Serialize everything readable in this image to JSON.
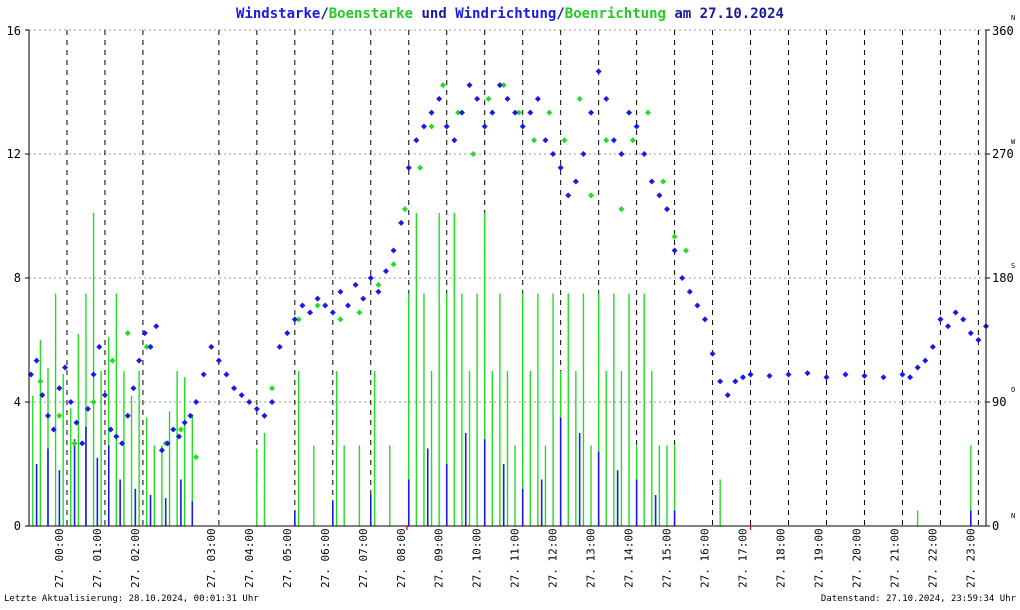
{
  "title": {
    "part1": "Windstarke",
    "sep1": "/",
    "part2": "Boenstarke",
    "part3": " und ",
    "part4": "Windrichtung",
    "sep2": "/",
    "part5": "Boenrichtung",
    "part6": " am 27.10.2024"
  },
  "footer": {
    "left": "Letzte Aktualisierung: 28.10.2024, 00:01:31 Uhr",
    "right": "Datenstand: 27.10.2024, 23:59:34 Uhr"
  },
  "colors": {
    "wind": "#1a1ae6",
    "gust": "#22dd22",
    "title_dark": "#1a1a99",
    "grid": "#000000",
    "red_marker": "#dd2222"
  },
  "chart_data": {
    "type": "scatter",
    "x_unit": "hour of day",
    "xlim": [
      0,
      24
    ],
    "left_axis": {
      "ylim": [
        0,
        16
      ],
      "ticks": [
        "0",
        "4",
        "8",
        "12",
        "16"
      ]
    },
    "right_axis": {
      "ylim": [
        0,
        360
      ],
      "ticks": [
        "0",
        "90",
        "180",
        "270",
        "360"
      ],
      "compass": [
        "N",
        "O",
        "S",
        "W",
        "N"
      ]
    },
    "x_ticks": [
      {
        "h": 0,
        "label": "27. 00:00"
      },
      {
        "h": 1,
        "label": "27. 01:00"
      },
      {
        "h": 2,
        "label": "27. 02:00"
      },
      {
        "h": 4,
        "label": "27. 03:00"
      },
      {
        "h": 5,
        "label": "27. 04:00"
      },
      {
        "h": 6,
        "label": "27. 05:00"
      },
      {
        "h": 7,
        "label": "27. 06:00"
      },
      {
        "h": 8,
        "label": "27. 07:00"
      },
      {
        "h": 9,
        "label": "27. 08:00"
      },
      {
        "h": 10,
        "label": "27. 09:00"
      },
      {
        "h": 11,
        "label": "27. 10:00"
      },
      {
        "h": 12,
        "label": "27. 11:00"
      },
      {
        "h": 13,
        "label": "27. 12:00"
      },
      {
        "h": 14,
        "label": "27. 13:00"
      },
      {
        "h": 15,
        "label": "27. 14:00"
      },
      {
        "h": 16,
        "label": "27. 15:00"
      },
      {
        "h": 17,
        "label": "27. 16:00"
      },
      {
        "h": 18,
        "label": "27. 17:00"
      },
      {
        "h": 19,
        "label": "27. 18:00"
      },
      {
        "h": 20,
        "label": "27. 19:00"
      },
      {
        "h": 21,
        "label": "27. 20:00"
      },
      {
        "h": 22,
        "label": "27. 21:00"
      },
      {
        "h": 23,
        "label": "27. 22:00"
      },
      {
        "h": 24,
        "label": "27. 23:00"
      }
    ],
    "red_markers_h": [
      9.95,
      19.0
    ],
    "series": [
      {
        "name": "Boenstarke",
        "kind": "gust_bars",
        "color": "#22dd22",
        "unit": "left",
        "values": [
          [
            0.1,
            4.2
          ],
          [
            0.3,
            6.0
          ],
          [
            0.5,
            5.1
          ],
          [
            0.7,
            7.5
          ],
          [
            0.9,
            4.9
          ],
          [
            1.1,
            3.8
          ],
          [
            1.3,
            6.2
          ],
          [
            1.5,
            7.5
          ],
          [
            1.7,
            10.1
          ],
          [
            1.9,
            5.0
          ],
          [
            2.1,
            6.1
          ],
          [
            2.3,
            7.5
          ],
          [
            2.5,
            5.0
          ],
          [
            2.7,
            4.2
          ],
          [
            2.9,
            5.0
          ],
          [
            3.1,
            3.5
          ],
          [
            3.3,
            2.6
          ],
          [
            3.5,
            2.6
          ],
          [
            3.7,
            3.7
          ],
          [
            3.9,
            5.0
          ],
          [
            4.1,
            4.8
          ],
          [
            4.3,
            3.6
          ],
          [
            6.0,
            2.5
          ],
          [
            6.2,
            3.0
          ],
          [
            7.1,
            5.0
          ],
          [
            7.5,
            2.6
          ],
          [
            8.1,
            5.0
          ],
          [
            8.3,
            2.6
          ],
          [
            8.7,
            2.6
          ],
          [
            9.1,
            5.0
          ],
          [
            9.5,
            2.6
          ],
          [
            10.0,
            7.5
          ],
          [
            10.2,
            10.1
          ],
          [
            10.4,
            7.5
          ],
          [
            10.6,
            5.0
          ],
          [
            10.8,
            10.1
          ],
          [
            11.0,
            7.5
          ],
          [
            11.2,
            10.1
          ],
          [
            11.4,
            7.5
          ],
          [
            11.6,
            5.0
          ],
          [
            11.8,
            7.5
          ],
          [
            12.0,
            10.1
          ],
          [
            12.2,
            5.0
          ],
          [
            12.4,
            7.5
          ],
          [
            12.6,
            5.0
          ],
          [
            12.8,
            2.6
          ],
          [
            13.0,
            7.5
          ],
          [
            13.2,
            5.0
          ],
          [
            13.4,
            7.5
          ],
          [
            13.6,
            2.6
          ],
          [
            13.8,
            7.5
          ],
          [
            14.0,
            5.0
          ],
          [
            14.2,
            7.5
          ],
          [
            14.4,
            5.0
          ],
          [
            14.6,
            7.5
          ],
          [
            14.8,
            2.6
          ],
          [
            15.0,
            7.5
          ],
          [
            15.2,
            5.0
          ],
          [
            15.4,
            7.5
          ],
          [
            15.6,
            5.0
          ],
          [
            15.8,
            7.5
          ],
          [
            16.0,
            2.6
          ],
          [
            16.2,
            7.5
          ],
          [
            16.4,
            5.0
          ],
          [
            16.6,
            2.6
          ],
          [
            16.8,
            2.6
          ],
          [
            17.0,
            2.6
          ],
          [
            18.2,
            1.5
          ],
          [
            23.4,
            0.5
          ],
          [
            24.8,
            2.6
          ]
        ]
      },
      {
        "name": "Windstarke",
        "kind": "wind_bars",
        "color": "#1a1ae6",
        "unit": "left",
        "values": [
          [
            0.2,
            2.0
          ],
          [
            0.5,
            2.5
          ],
          [
            0.8,
            1.8
          ],
          [
            1.2,
            2.8
          ],
          [
            1.5,
            3.2
          ],
          [
            1.8,
            2.2
          ],
          [
            2.1,
            2.6
          ],
          [
            2.4,
            1.5
          ],
          [
            2.8,
            1.2
          ],
          [
            3.2,
            1.0
          ],
          [
            3.6,
            0.9
          ],
          [
            4.0,
            1.5
          ],
          [
            4.3,
            0.8
          ],
          [
            7.0,
            0.5
          ],
          [
            8.0,
            0.8
          ],
          [
            9.0,
            1.0
          ],
          [
            10.0,
            1.5
          ],
          [
            10.5,
            2.5
          ],
          [
            11.0,
            2.0
          ],
          [
            11.5,
            3.0
          ],
          [
            12.0,
            2.8
          ],
          [
            12.5,
            2.0
          ],
          [
            13.0,
            1.2
          ],
          [
            13.5,
            1.5
          ],
          [
            14.0,
            3.5
          ],
          [
            14.5,
            3.0
          ],
          [
            15.0,
            2.4
          ],
          [
            15.5,
            1.8
          ],
          [
            16.0,
            1.5
          ],
          [
            16.5,
            1.0
          ],
          [
            17.0,
            0.5
          ],
          [
            24.8,
            0.5
          ]
        ]
      },
      {
        "name": "Boenrichtung",
        "kind": "points",
        "color": "#22dd22",
        "unit": "right",
        "values": [
          [
            0.3,
            105
          ],
          [
            0.8,
            80
          ],
          [
            1.2,
            60
          ],
          [
            1.7,
            90
          ],
          [
            2.2,
            120
          ],
          [
            2.6,
            140
          ],
          [
            3.1,
            130
          ],
          [
            3.6,
            60
          ],
          [
            4.0,
            70
          ],
          [
            4.4,
            50
          ],
          [
            6.4,
            100
          ],
          [
            7.1,
            150
          ],
          [
            7.6,
            160
          ],
          [
            8.2,
            150
          ],
          [
            8.7,
            155
          ],
          [
            9.2,
            175
          ],
          [
            9.6,
            190
          ],
          [
            9.9,
            230
          ],
          [
            10.3,
            260
          ],
          [
            10.6,
            290
          ],
          [
            10.9,
            320
          ],
          [
            11.3,
            300
          ],
          [
            11.7,
            270
          ],
          [
            12.1,
            310
          ],
          [
            12.5,
            320
          ],
          [
            12.9,
            300
          ],
          [
            13.3,
            280
          ],
          [
            13.7,
            300
          ],
          [
            14.1,
            280
          ],
          [
            14.5,
            310
          ],
          [
            14.8,
            240
          ],
          [
            15.2,
            280
          ],
          [
            15.6,
            230
          ],
          [
            15.9,
            280
          ],
          [
            16.3,
            300
          ],
          [
            16.7,
            250
          ],
          [
            17.0,
            210
          ],
          [
            17.3,
            200
          ]
        ]
      },
      {
        "name": "Windrichtung",
        "kind": "points",
        "color": "#1a1ae6",
        "unit": "right",
        "values": [
          [
            0.05,
            110
          ],
          [
            0.2,
            120
          ],
          [
            0.35,
            95
          ],
          [
            0.5,
            80
          ],
          [
            0.65,
            70
          ],
          [
            0.8,
            100
          ],
          [
            0.95,
            115
          ],
          [
            1.1,
            90
          ],
          [
            1.25,
            75
          ],
          [
            1.4,
            60
          ],
          [
            1.55,
            85
          ],
          [
            1.7,
            110
          ],
          [
            1.85,
            130
          ],
          [
            2.0,
            95
          ],
          [
            2.15,
            70
          ],
          [
            2.3,
            65
          ],
          [
            2.45,
            60
          ],
          [
            2.6,
            80
          ],
          [
            2.75,
            100
          ],
          [
            2.9,
            120
          ],
          [
            3.05,
            140
          ],
          [
            3.2,
            130
          ],
          [
            3.35,
            145
          ],
          [
            3.5,
            55
          ],
          [
            3.65,
            60
          ],
          [
            3.8,
            70
          ],
          [
            3.95,
            65
          ],
          [
            4.1,
            75
          ],
          [
            4.25,
            80
          ],
          [
            4.4,
            90
          ],
          [
            4.6,
            110
          ],
          [
            4.8,
            130
          ],
          [
            5.0,
            120
          ],
          [
            5.2,
            110
          ],
          [
            5.4,
            100
          ],
          [
            5.6,
            95
          ],
          [
            5.8,
            90
          ],
          [
            6.0,
            85
          ],
          [
            6.2,
            80
          ],
          [
            6.4,
            90
          ],
          [
            6.6,
            130
          ],
          [
            6.8,
            140
          ],
          [
            7.0,
            150
          ],
          [
            7.2,
            160
          ],
          [
            7.4,
            155
          ],
          [
            7.6,
            165
          ],
          [
            7.8,
            160
          ],
          [
            8.0,
            155
          ],
          [
            8.2,
            170
          ],
          [
            8.4,
            160
          ],
          [
            8.6,
            175
          ],
          [
            8.8,
            165
          ],
          [
            9.0,
            180
          ],
          [
            9.2,
            170
          ],
          [
            9.4,
            185
          ],
          [
            9.6,
            200
          ],
          [
            9.8,
            220
          ],
          [
            10.0,
            260
          ],
          [
            10.2,
            280
          ],
          [
            10.4,
            290
          ],
          [
            10.6,
            300
          ],
          [
            10.8,
            310
          ],
          [
            11.0,
            290
          ],
          [
            11.2,
            280
          ],
          [
            11.4,
            300
          ],
          [
            11.6,
            320
          ],
          [
            11.8,
            310
          ],
          [
            12.0,
            290
          ],
          [
            12.2,
            300
          ],
          [
            12.4,
            320
          ],
          [
            12.6,
            310
          ],
          [
            12.8,
            300
          ],
          [
            13.0,
            290
          ],
          [
            13.2,
            300
          ],
          [
            13.4,
            310
          ],
          [
            13.6,
            280
          ],
          [
            13.8,
            270
          ],
          [
            14.0,
            260
          ],
          [
            14.2,
            240
          ],
          [
            14.4,
            250
          ],
          [
            14.6,
            270
          ],
          [
            14.8,
            300
          ],
          [
            15.0,
            330
          ],
          [
            15.2,
            310
          ],
          [
            15.4,
            280
          ],
          [
            15.6,
            270
          ],
          [
            15.8,
            300
          ],
          [
            16.0,
            290
          ],
          [
            16.2,
            270
          ],
          [
            16.4,
            250
          ],
          [
            16.6,
            240
          ],
          [
            16.8,
            230
          ],
          [
            17.0,
            200
          ],
          [
            17.2,
            180
          ],
          [
            17.4,
            170
          ],
          [
            17.6,
            160
          ],
          [
            17.8,
            150
          ],
          [
            18.0,
            125
          ],
          [
            18.2,
            105
          ],
          [
            18.4,
            95
          ],
          [
            18.6,
            105
          ],
          [
            18.8,
            108
          ],
          [
            19.0,
            110
          ],
          [
            19.5,
            109
          ],
          [
            20.0,
            110
          ],
          [
            20.5,
            111
          ],
          [
            21.0,
            108
          ],
          [
            21.5,
            110
          ],
          [
            22.0,
            109
          ],
          [
            22.5,
            108
          ],
          [
            23.0,
            110
          ],
          [
            23.2,
            108
          ],
          [
            23.4,
            115
          ],
          [
            23.6,
            120
          ],
          [
            23.8,
            130
          ],
          [
            24.0,
            150
          ],
          [
            24.2,
            145
          ],
          [
            24.4,
            155
          ],
          [
            24.6,
            150
          ],
          [
            24.8,
            140
          ],
          [
            25.0,
            135
          ],
          [
            25.2,
            145
          ]
        ]
      }
    ]
  }
}
